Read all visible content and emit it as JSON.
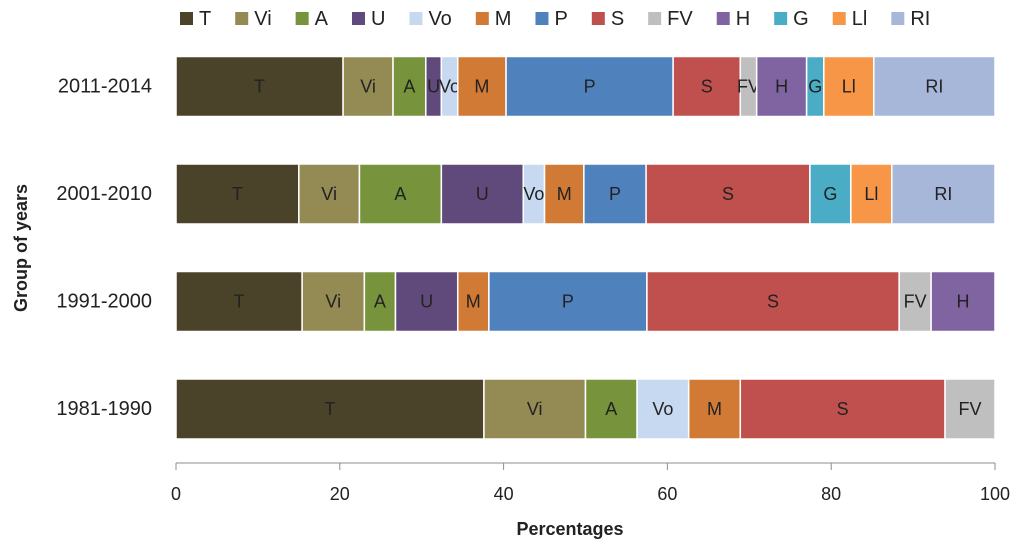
{
  "chart_data": {
    "type": "bar",
    "orientation": "horizontal",
    "stacked": true,
    "xlabel": "Percentages",
    "ylabel": "Group of years",
    "xlim": [
      0,
      100
    ],
    "xticks": [
      0,
      20,
      40,
      60,
      80,
      100
    ],
    "grid": false,
    "legend_position": "top",
    "categories": [
      "1981-1990",
      "1991-2000",
      "2001-2010",
      "2011-2014"
    ],
    "series": [
      {
        "name": "T",
        "color": "#4a4229",
        "values": [
          37.6,
          15.4,
          15.0,
          20.4
        ]
      },
      {
        "name": "Vi",
        "color": "#948a54",
        "values": [
          12.4,
          7.6,
          7.4,
          6.1
        ]
      },
      {
        "name": "A",
        "color": "#77933c",
        "values": [
          6.3,
          3.8,
          10.0,
          4.0
        ]
      },
      {
        "name": "U",
        "color": "#604a7b",
        "values": [
          0,
          7.6,
          10.0,
          1.9
        ]
      },
      {
        "name": "Vo",
        "color": "#c6d9f1",
        "values": [
          6.3,
          0,
          2.6,
          2.0
        ]
      },
      {
        "name": "M",
        "color": "#d07a36",
        "values": [
          6.3,
          3.8,
          4.8,
          5.9
        ]
      },
      {
        "name": "P",
        "color": "#4f81bd",
        "values": [
          0,
          19.3,
          7.6,
          20.4
        ]
      },
      {
        "name": "S",
        "color": "#c0504d",
        "values": [
          25.0,
          30.8,
          20.0,
          8.2
        ]
      },
      {
        "name": "FV",
        "color": "#bfbfbf",
        "values": [
          6.1,
          3.9,
          0,
          2.0
        ]
      },
      {
        "name": "H",
        "color": "#8064a2",
        "values": [
          0,
          7.8,
          0,
          6.1
        ]
      },
      {
        "name": "G",
        "color": "#4bacc6",
        "values": [
          0,
          0,
          5.0,
          2.1
        ]
      },
      {
        "name": "Ll",
        "color": "#f79646",
        "values": [
          0,
          0,
          5.0,
          6.1
        ]
      },
      {
        "name": "RI",
        "color": "#a6b7da",
        "values": [
          0,
          0,
          12.6,
          14.8
        ]
      }
    ]
  }
}
